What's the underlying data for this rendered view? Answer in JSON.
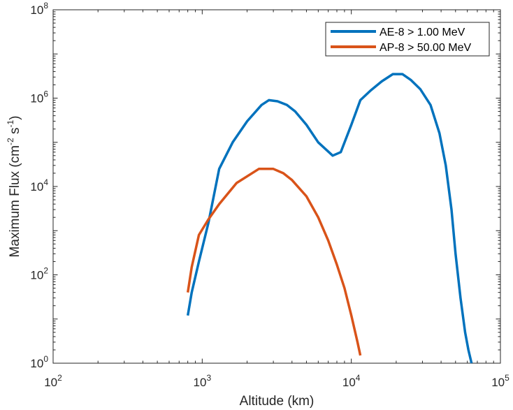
{
  "chart_data": {
    "type": "line",
    "title": "",
    "xlabel": "Altitude (km)",
    "ylabel": {
      "main": "Maximum Flux (cm",
      "exp1": "-2",
      "mid": " s",
      "exp2": "-1",
      "close": ")"
    },
    "xscale": "log",
    "yscale": "log",
    "xlim": [
      100,
      100000
    ],
    "ylim": [
      1,
      100000000
    ],
    "x_ticks": [
      {
        "base": "10",
        "exp": "2",
        "value": 100
      },
      {
        "base": "10",
        "exp": "3",
        "value": 1000
      },
      {
        "base": "10",
        "exp": "4",
        "value": 10000
      },
      {
        "base": "10",
        "exp": "5",
        "value": 100000
      }
    ],
    "y_ticks": [
      {
        "base": "10",
        "exp": "0",
        "value": 1
      },
      {
        "base": "10",
        "exp": "2",
        "value": 100
      },
      {
        "base": "10",
        "exp": "4",
        "value": 10000
      },
      {
        "base": "10",
        "exp": "6",
        "value": 1000000
      },
      {
        "base": "10",
        "exp": "8",
        "value": 100000000
      }
    ],
    "grid": false,
    "legend_position": "top-right",
    "series": [
      {
        "name": "AE-8 > 1.00 MeV",
        "color": "#0072BD",
        "x": [
          800,
          850,
          950,
          1100,
          1300,
          1600,
          2000,
          2500,
          2800,
          3200,
          3700,
          4200,
          5000,
          6000,
          7500,
          8500,
          10000,
          11500,
          13500,
          16000,
          19000,
          22000,
          25000,
          29000,
          34000,
          39000,
          43000,
          47000,
          50000,
          54000,
          58000,
          61000,
          64000
        ],
        "y": [
          12,
          40,
          200,
          1500,
          25000,
          100000,
          300000,
          700000,
          900000,
          850000,
          700000,
          500000,
          250000,
          100000,
          50000,
          60000,
          250000,
          900000,
          1500000,
          2400000,
          3500000,
          3500000,
          2600000,
          1600000,
          700000,
          160000,
          30000,
          3000,
          300,
          30,
          5,
          2,
          1
        ]
      },
      {
        "name": "AP-8 > 50.00 MeV",
        "color": "#D95319",
        "x": [
          800,
          850,
          950,
          1100,
          1300,
          1700,
          2400,
          3000,
          3500,
          4000,
          5000,
          6000,
          7000,
          8000,
          9000,
          10000,
          11000,
          11500
        ],
        "y": [
          40,
          150,
          800,
          1800,
          4000,
          12000,
          25000,
          25000,
          20000,
          14000,
          6000,
          2000,
          600,
          170,
          50,
          12,
          3,
          1.5
        ]
      }
    ]
  }
}
